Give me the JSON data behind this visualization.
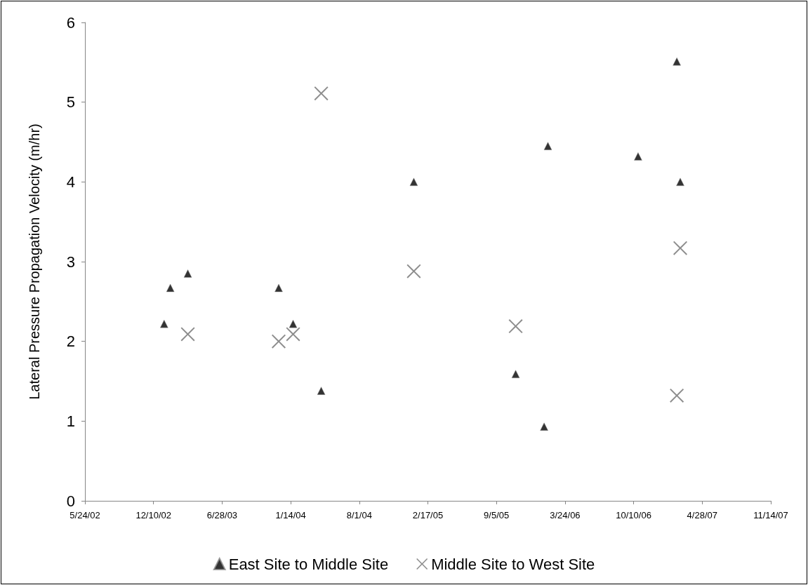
{
  "chart_data": {
    "type": "scatter",
    "ylabel": "Lateral Pressure Propagation Velocity (m/hr)",
    "series": [
      {
        "name": "East Site to Middle Site",
        "color": "#000000",
        "marker": "triangle",
        "x": [
          "2003-01-10",
          "2003-01-28",
          "2003-03-20",
          "2003-12-10",
          "2004-01-21",
          "2004-04-12",
          "2005-01-07",
          "2005-10-31",
          "2006-01-22",
          "2006-02-02",
          "2006-10-23",
          "2007-02-13",
          "2007-02-23"
        ],
        "values": [
          2.22,
          2.67,
          2.85,
          2.67,
          2.22,
          1.38,
          4.0,
          1.59,
          0.93,
          4.45,
          4.32,
          5.51,
          4.0
        ]
      },
      {
        "name": "Middle Site to West Site",
        "color": "#707070",
        "marker": "cross",
        "x": [
          "2003-03-20",
          "2003-12-10",
          "2004-01-21",
          "2004-04-12",
          "2005-01-07",
          "2005-10-31",
          "2007-02-13",
          "2007-02-23"
        ],
        "values": [
          2.09,
          2.0,
          2.09,
          5.11,
          2.88,
          2.19,
          1.32,
          3.17
        ]
      }
    ],
    "xlim": [
      "2002-05-24",
      "2007-11-14"
    ],
    "xticks": [
      {
        "value": "2002-05-24",
        "label": "5/24/02"
      },
      {
        "value": "2002-12-10",
        "label": "12/10/02"
      },
      {
        "value": "2003-06-28",
        "label": "6/28/03"
      },
      {
        "value": "2004-01-14",
        "label": "1/14/04"
      },
      {
        "value": "2004-08-01",
        "label": "8/1/04"
      },
      {
        "value": "2005-02-17",
        "label": "2/17/05"
      },
      {
        "value": "2005-09-05",
        "label": "9/5/05"
      },
      {
        "value": "2006-03-24",
        "label": "3/24/06"
      },
      {
        "value": "2006-10-10",
        "label": "10/10/06"
      },
      {
        "value": "2007-04-28",
        "label": "4/28/07"
      },
      {
        "value": "2007-11-14",
        "label": "11/14/07"
      }
    ],
    "ylim": [
      0,
      6
    ],
    "yticks": [
      0,
      1,
      2,
      3,
      4,
      5,
      6
    ],
    "grid": false,
    "legend": "bottom"
  }
}
